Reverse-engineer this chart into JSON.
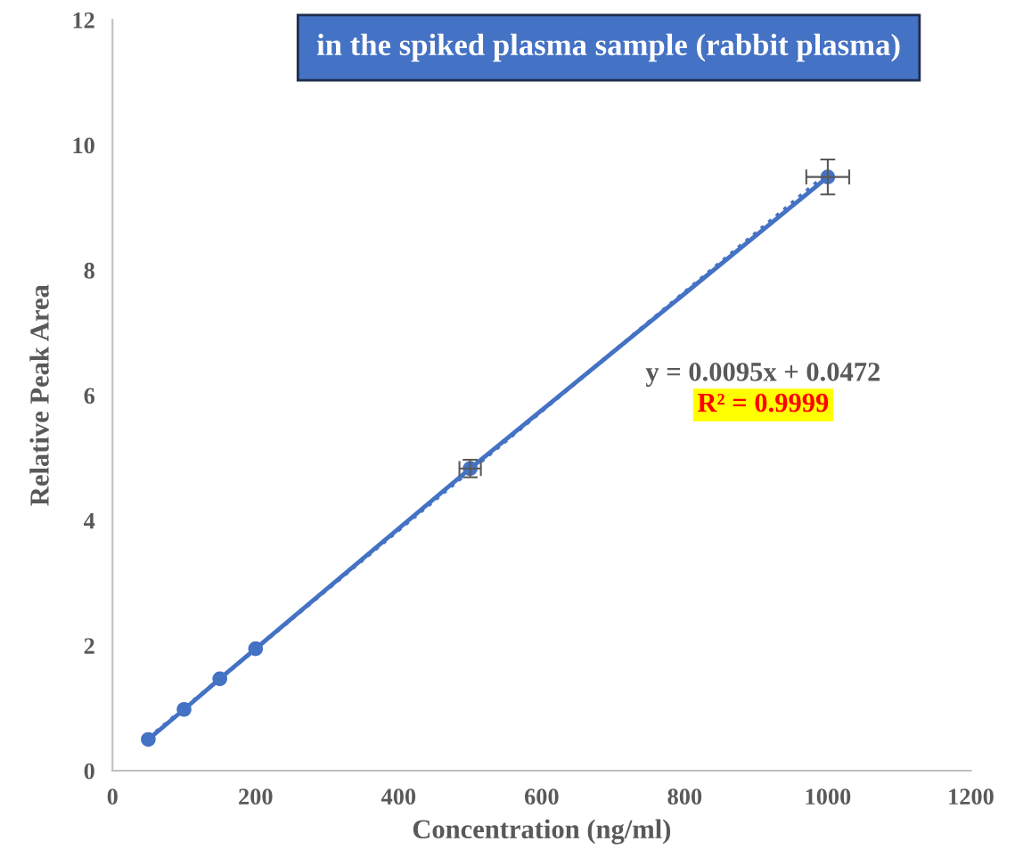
{
  "chart_data": {
    "type": "line",
    "title": "in the spiked plasma sample (rabbit plasma)",
    "xlabel": "Concentration (ng/ml)",
    "ylabel": "Relative Peak Area",
    "x": [
      50,
      100,
      150,
      200,
      500,
      1000
    ],
    "series": [
      {
        "color": "#4472c4",
        "values": [
          0.5,
          0.98,
          1.47,
          1.95,
          4.83,
          9.49
        ],
        "errors": [
          null,
          null,
          null,
          null,
          0.14,
          0.28
        ],
        "xerrors": [
          null,
          null,
          null,
          null,
          15,
          30
        ],
        "marker": "circle",
        "line_style": "solid"
      },
      {
        "color": "#4472c4",
        "x": [
          50,
          1000
        ],
        "values": [
          0.52,
          9.55
        ],
        "marker": "none",
        "line_style": "dotted"
      }
    ],
    "annotations": [
      "y = 0.0095x + 0.0472",
      "R² = 0.9999"
    ],
    "xlim": [
      0,
      1200
    ],
    "xticks": [
      0,
      200,
      400,
      600,
      800,
      1000,
      1200
    ],
    "ylim": [
      0,
      12
    ],
    "yticks": [
      0,
      2,
      4,
      6,
      8,
      10,
      12
    ],
    "grid": false,
    "legend": false
  }
}
